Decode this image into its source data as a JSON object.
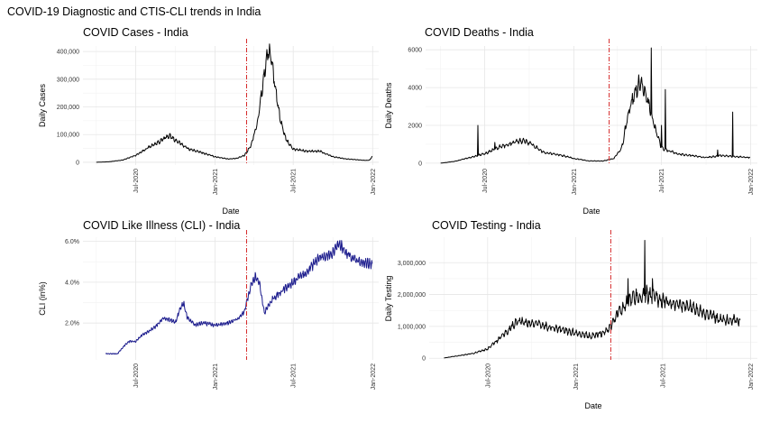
{
  "figure_title": "COVID-19 Diagnostic and CTIS-CLI trends in India",
  "chart_data": [
    {
      "type": "line",
      "title": "COVID Cases - India",
      "xlabel": "Date",
      "ylabel": "Daily Cases",
      "x_start": "2020-04-01",
      "x_end": "2021-12-31",
      "xlim": [
        "2020-03-01",
        "2022-01-15"
      ],
      "ylim": [
        -10000,
        420000
      ],
      "yticks": [
        0,
        100000,
        200000,
        300000,
        400000
      ],
      "ytick_labels": [
        "0",
        "100,000",
        "200,000",
        "300,000",
        "400,000"
      ],
      "xtick_labels": [
        "Jul-2020",
        "Jan-2021",
        "Jul-2021",
        "Jan-2022"
      ],
      "vline_date": "2021-03-15",
      "line_color": "#000000",
      "series": [
        {
          "name": "Daily Cases",
          "anchors": [
            [
              "2020-04-01",
              0
            ],
            [
              "2020-05-01",
              2000
            ],
            [
              "2020-06-01",
              8000
            ],
            [
              "2020-07-01",
              25000
            ],
            [
              "2020-08-01",
              55000
            ],
            [
              "2020-08-20",
              70000
            ],
            [
              "2020-09-10",
              90000
            ],
            [
              "2020-09-17",
              96000
            ],
            [
              "2020-10-01",
              80000
            ],
            [
              "2020-11-01",
              48000
            ],
            [
              "2020-12-01",
              35000
            ],
            [
              "2021-01-01",
              20000
            ],
            [
              "2021-02-01",
              12000
            ],
            [
              "2021-02-20",
              14000
            ],
            [
              "2021-03-10",
              25000
            ],
            [
              "2021-03-25",
              60000
            ],
            [
              "2021-04-10",
              150000
            ],
            [
              "2021-04-25",
              320000
            ],
            [
              "2021-05-06",
              414000
            ],
            [
              "2021-05-20",
              280000
            ],
            [
              "2021-06-01",
              150000
            ],
            [
              "2021-06-15",
              80000
            ],
            [
              "2021-07-01",
              48000
            ],
            [
              "2021-08-01",
              40000
            ],
            [
              "2021-09-01",
              40000
            ],
            [
              "2021-09-15",
              30000
            ],
            [
              "2021-10-01",
              20000
            ],
            [
              "2021-11-01",
              12000
            ],
            [
              "2021-12-15",
              7000
            ],
            [
              "2021-12-25",
              8000
            ],
            [
              "2021-12-31",
              22000
            ]
          ],
          "noise": 0.12,
          "noise_period": 7
        }
      ]
    },
    {
      "type": "line",
      "title": "COVID Deaths - India",
      "xlabel": "Date",
      "ylabel": "Daily Deaths",
      "x_start": "2020-04-01",
      "x_end": "2021-12-31",
      "xlim": [
        "2020-03-01",
        "2022-01-15"
      ],
      "ylim": [
        -100,
        6200
      ],
      "yticks": [
        0,
        2000,
        4000,
        6000
      ],
      "ytick_labels": [
        "0",
        "2000",
        "4000",
        "6000"
      ],
      "xtick_labels": [
        "Jul-2020",
        "Jan-2021",
        "Jul-2021",
        "Jan-2022"
      ],
      "vline_date": "2021-03-15",
      "line_color": "#000000",
      "series": [
        {
          "name": "Daily Deaths",
          "anchors": [
            [
              "2020-04-01",
              0
            ],
            [
              "2020-05-01",
              100
            ],
            [
              "2020-06-01",
              300
            ],
            [
              "2020-07-01",
              500
            ],
            [
              "2020-08-01",
              850
            ],
            [
              "2020-09-01",
              1100
            ],
            [
              "2020-09-15",
              1200
            ],
            [
              "2020-10-01",
              1100
            ],
            [
              "2020-11-01",
              550
            ],
            [
              "2020-12-01",
              450
            ],
            [
              "2021-01-01",
              250
            ],
            [
              "2021-02-01",
              120
            ],
            [
              "2021-03-01",
              110
            ],
            [
              "2021-03-25",
              250
            ],
            [
              "2021-04-10",
              800
            ],
            [
              "2021-04-25",
              2800
            ],
            [
              "2021-05-10",
              4000
            ],
            [
              "2021-05-20",
              4300
            ],
            [
              "2021-06-01",
              3500
            ],
            [
              "2021-06-10",
              2500
            ],
            [
              "2021-07-01",
              800
            ],
            [
              "2021-08-01",
              500
            ],
            [
              "2021-09-01",
              400
            ],
            [
              "2021-10-01",
              300
            ],
            [
              "2021-11-01",
              400
            ],
            [
              "2021-12-31",
              300
            ]
          ],
          "noise": 0.15,
          "noise_period": 7,
          "spikes": [
            [
              "2020-06-17",
              2000
            ],
            [
              "2020-07-22",
              1100
            ],
            [
              "2021-06-10",
              6100
            ],
            [
              "2021-07-01",
              2000
            ],
            [
              "2021-07-09",
              3900
            ],
            [
              "2021-10-25",
              700
            ],
            [
              "2021-11-25",
              2700
            ]
          ]
        }
      ]
    },
    {
      "type": "line",
      "title": "COVID Like Illness (CLI) - India",
      "xlabel": "",
      "ylabel": "CLI (in%)",
      "x_start": "2020-04-23",
      "x_end": "2021-12-31",
      "xlim": [
        "2020-03-01",
        "2022-01-15"
      ],
      "ylim": [
        0.2,
        6.2
      ],
      "yticks": [
        2.0,
        4.0,
        6.0
      ],
      "ytick_labels": [
        "2.0%",
        "4.0%",
        "6.0%"
      ],
      "xtick_labels": [
        "Jul-2020",
        "Jan-2021",
        "Jul-2021",
        "Jan-2022"
      ],
      "vline_date": "2021-03-15",
      "line_color": "#1a1a8c",
      "series": [
        {
          "name": "CLI",
          "anchors": [
            [
              "2020-04-23",
              0.5
            ],
            [
              "2020-05-20",
              0.5
            ],
            [
              "2020-06-01",
              0.8
            ],
            [
              "2020-06-15",
              1.1
            ],
            [
              "2020-07-01",
              1.1
            ],
            [
              "2020-07-15",
              1.4
            ],
            [
              "2020-08-15",
              1.8
            ],
            [
              "2020-09-01",
              2.2
            ],
            [
              "2020-09-15",
              2.2
            ],
            [
              "2020-10-01",
              2.0
            ],
            [
              "2020-10-10",
              2.6
            ],
            [
              "2020-10-20",
              3.0
            ],
            [
              "2020-10-28",
              2.3
            ],
            [
              "2020-11-15",
              1.9
            ],
            [
              "2020-12-01",
              2.0
            ],
            [
              "2021-01-01",
              1.9
            ],
            [
              "2021-02-01",
              2.0
            ],
            [
              "2021-02-20",
              2.2
            ],
            [
              "2021-03-01",
              2.3
            ],
            [
              "2021-03-10",
              2.6
            ],
            [
              "2021-03-25",
              3.8
            ],
            [
              "2021-04-05",
              4.3
            ],
            [
              "2021-04-15",
              3.8
            ],
            [
              "2021-04-25",
              2.5
            ],
            [
              "2021-05-15",
              3.2
            ],
            [
              "2021-06-01",
              3.5
            ],
            [
              "2021-07-01",
              4.0
            ],
            [
              "2021-08-01",
              4.5
            ],
            [
              "2021-09-01",
              5.2
            ],
            [
              "2021-10-01",
              5.4
            ],
            [
              "2021-10-15",
              5.9
            ],
            [
              "2021-11-01",
              5.4
            ],
            [
              "2021-12-01",
              5.0
            ],
            [
              "2021-12-31",
              4.9
            ]
          ],
          "noise": 0.06,
          "noise_period": 5
        }
      ]
    },
    {
      "type": "line",
      "title": "COVID Testing - India",
      "xlabel": "Date",
      "ylabel": "Daily Testing",
      "x_start": "2020-04-01",
      "x_end": "2021-12-10",
      "xlim": [
        "2020-03-01",
        "2022-01-15"
      ],
      "ylim": [
        -50000,
        3800000
      ],
      "yticks": [
        0,
        1000000,
        2000000,
        3000000
      ],
      "ytick_labels": [
        "0",
        "1,000,000",
        "2,000,000",
        "3,000,000"
      ],
      "xtick_labels": [
        "Jul-2020",
        "Jan-2021",
        "Jul-2021",
        "Jan-2022"
      ],
      "vline_date": "2021-03-15",
      "line_color": "#000000",
      "series": [
        {
          "name": "Daily Testing",
          "anchors": [
            [
              "2020-04-01",
              10000
            ],
            [
              "2020-05-01",
              80000
            ],
            [
              "2020-06-01",
              150000
            ],
            [
              "2020-07-01",
              300000
            ],
            [
              "2020-08-01",
              700000
            ],
            [
              "2020-09-01",
              1150000
            ],
            [
              "2020-10-01",
              1100000
            ],
            [
              "2020-11-01",
              1000000
            ],
            [
              "2020-12-01",
              900000
            ],
            [
              "2021-01-01",
              800000
            ],
            [
              "2021-02-01",
              700000
            ],
            [
              "2021-03-01",
              800000
            ],
            [
              "2021-03-15",
              1000000
            ],
            [
              "2021-04-01",
              1500000
            ],
            [
              "2021-05-01",
              1900000
            ],
            [
              "2021-06-01",
              2000000
            ],
            [
              "2021-07-01",
              1800000
            ],
            [
              "2021-08-01",
              1700000
            ],
            [
              "2021-09-01",
              1600000
            ],
            [
              "2021-10-01",
              1400000
            ],
            [
              "2021-11-01",
              1200000
            ],
            [
              "2021-12-10",
              1200000
            ]
          ],
          "noise": 0.16,
          "noise_period": 7,
          "spikes": [
            [
              "2021-05-25",
              3700000
            ],
            [
              "2021-06-10",
              2500000
            ],
            [
              "2021-04-20",
              2500000
            ]
          ]
        }
      ]
    }
  ]
}
